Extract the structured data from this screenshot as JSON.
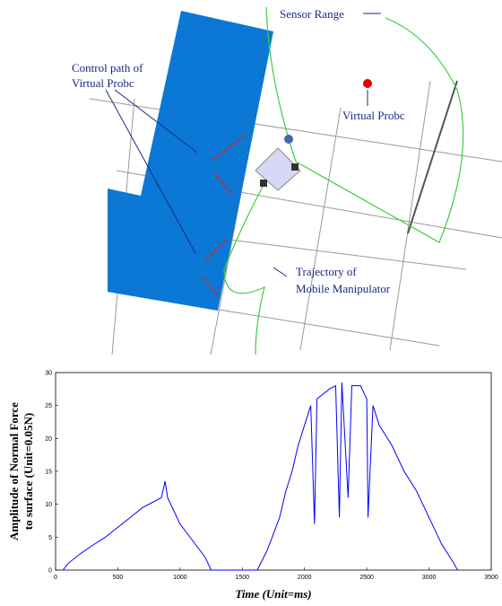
{
  "illustration": {
    "sensor_label": "Sensor Range",
    "control_label": [
      "Control path of",
      "Virtual Probc"
    ],
    "probe_label": "Virtual Probc",
    "trajectory_label": [
      "Trajectory of",
      "Mobile Manipulator"
    ]
  },
  "chart_data": {
    "type": "line",
    "xlabel": "Time (Unit=ms)",
    "ylabel": [
      "Amplitude of Normal Force",
      "to surface (Unit=0.05N)"
    ],
    "x": [
      60,
      100,
      200,
      300,
      400,
      500,
      600,
      700,
      800,
      850,
      880,
      900,
      950,
      1000,
      1100,
      1200,
      1250,
      1620,
      1700,
      1800,
      1850,
      1900,
      1950,
      2000,
      2050,
      2080,
      2100,
      2200,
      2250,
      2280,
      2300,
      2350,
      2380,
      2450,
      2500,
      2510,
      2550,
      2600,
      2700,
      2800,
      2900,
      3000,
      3100,
      3200,
      3230
    ],
    "values": [
      0,
      1,
      2.5,
      3.8,
      5,
      6.5,
      8,
      9.5,
      10.5,
      11,
      13.5,
      11,
      9,
      7,
      4.5,
      2,
      0,
      0,
      3,
      8,
      12,
      15,
      19,
      22,
      25,
      7,
      26,
      27.5,
      28,
      8,
      28.5,
      11,
      28,
      28,
      26,
      8,
      25,
      22,
      19,
      15,
      12,
      8,
      4,
      1,
      0
    ],
    "color": "#0000ff",
    "xlim": [
      0,
      3500
    ],
    "xticks": [
      0,
      500,
      1000,
      1500,
      2000,
      2500,
      3000,
      3500
    ],
    "ylim": [
      0,
      30
    ],
    "yticks": [
      0,
      5,
      10,
      15,
      20,
      25,
      30
    ]
  }
}
